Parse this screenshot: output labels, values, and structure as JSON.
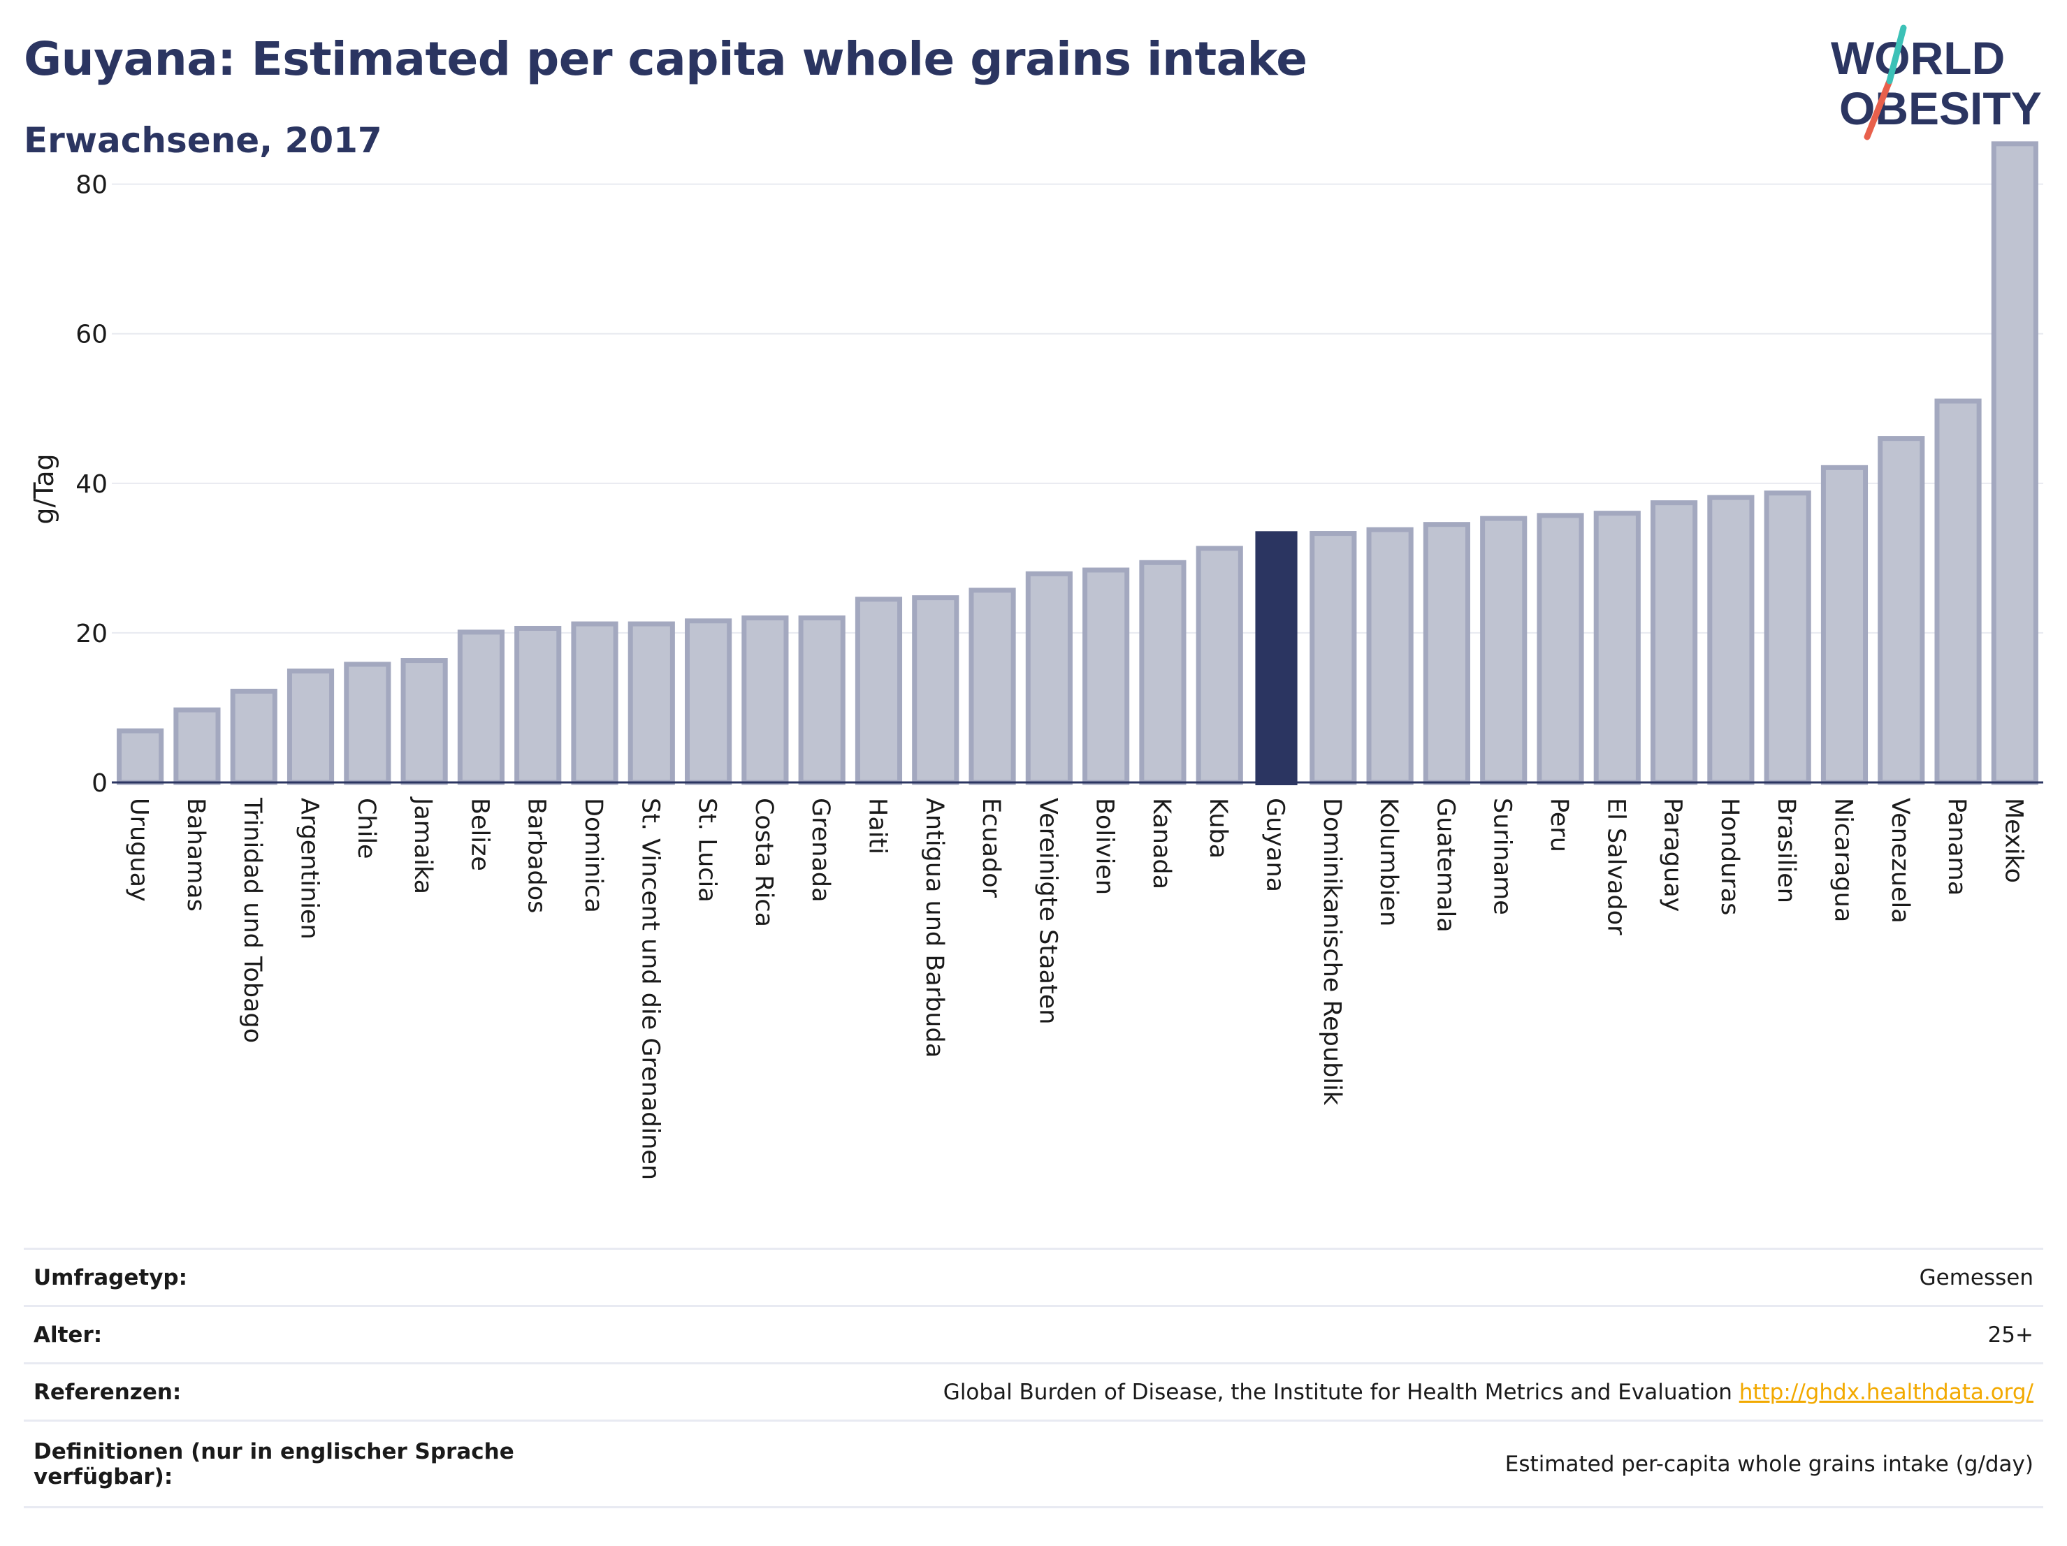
{
  "header": {
    "title": "Guyana: Estimated per capita whole grains intake",
    "subtitle": "Erwachsene, 2017"
  },
  "logo": {
    "line1": "WORLD",
    "line2": "OBESITY",
    "colors": {
      "text": "#2b3561",
      "stroke_red": "#e8604c",
      "stroke_teal": "#3cc1b7"
    }
  },
  "chart_data": {
    "type": "bar",
    "ylabel": "g/Tag",
    "xlabel": "",
    "ylim": [
      0,
      88
    ],
    "yticks": [
      0,
      20,
      40,
      60,
      80
    ],
    "grid": true,
    "highlight": "Guyana",
    "colors": {
      "bar": "#bfc3d1",
      "bar_border": "#a3a8bf",
      "highlight": "#2b3561",
      "grid": "#e8eaf0"
    },
    "categories": [
      "Uruguay",
      "Bahamas",
      "Trinidad und Tobago",
      "Argentinien",
      "Chile",
      "Jamaika",
      "Belize",
      "Barbados",
      "Dominica",
      "St. Vincent und die Grenadinen",
      "St. Lucia",
      "Costa Rica",
      "Grenada",
      "Haiti",
      "Antigua und Barbuda",
      "Ecuador",
      "Vereinigte Staaten",
      "Bolivien",
      "Kanada",
      "Kuba",
      "Guyana",
      "Dominikanische Republik",
      "Kolumbien",
      "Guatemala",
      "Suriname",
      "Peru",
      "El Salvador",
      "Paraguay",
      "Honduras",
      "Brasilien",
      "Nicaragua",
      "Venezuela",
      "Panama",
      "Mexiko"
    ],
    "values": [
      6.9,
      9.7,
      12.2,
      14.9,
      15.8,
      16.3,
      20.1,
      20.6,
      21.2,
      21.2,
      21.6,
      22.0,
      22.0,
      24.5,
      24.7,
      25.7,
      27.9,
      28.4,
      29.4,
      31.3,
      33.6,
      33.3,
      33.8,
      34.5,
      35.3,
      35.7,
      36.0,
      37.4,
      38.1,
      38.7,
      42.1,
      46.0,
      51.0,
      85.4
    ]
  },
  "meta": [
    {
      "label": "Umfragetyp:",
      "value": "Gemessen"
    },
    {
      "label": "Alter:",
      "value": "25+"
    },
    {
      "label": "Referenzen:",
      "value": "Global Burden of Disease, the Institute for Health Metrics and Evaluation",
      "link": "http://ghdx.healthdata.org/"
    },
    {
      "label": "Definitionen (nur in englischer Sprache verfügbar):",
      "value": "Estimated per-capita whole grains intake (g/day)"
    }
  ]
}
